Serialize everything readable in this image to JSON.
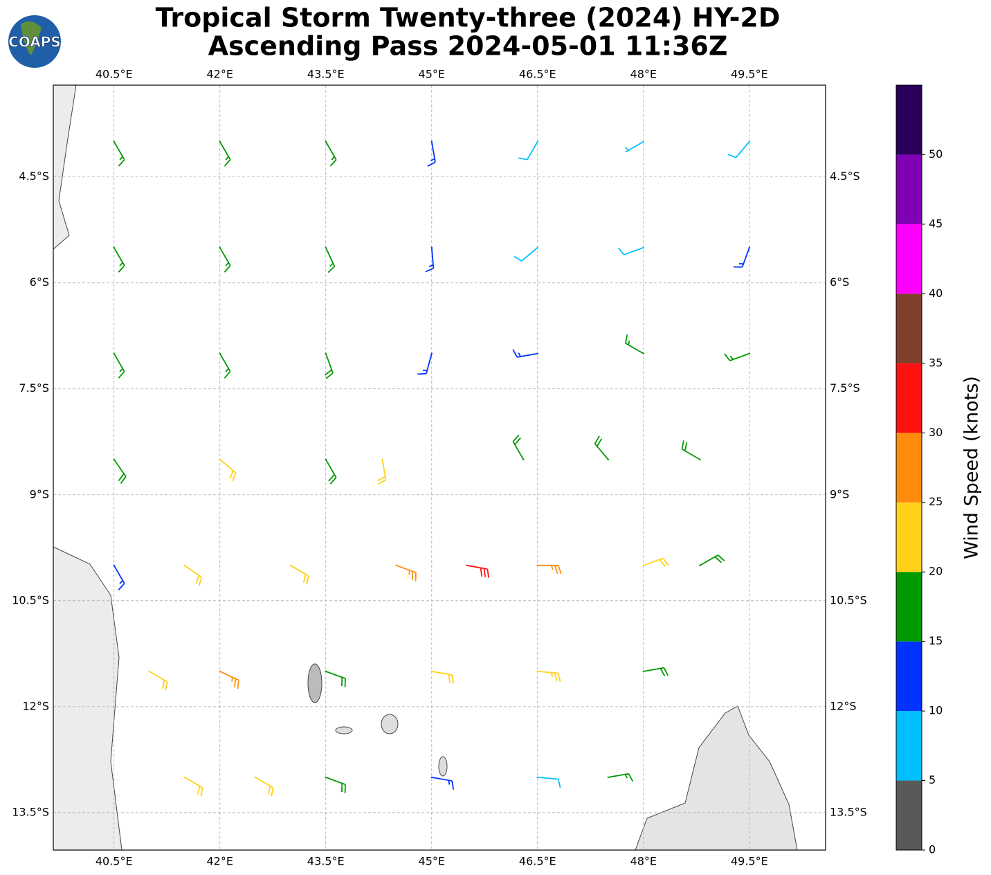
{
  "logo": "COAPS",
  "chart_data": {
    "type": "barbs",
    "title": "Tropical Storm Twenty-three (2024) HY-2D",
    "subtitle": "Ascending Pass 2024-05-01 11:36Z",
    "xlim": [
      39.64,
      50.58
    ],
    "ylim": [
      -14.03,
      -3.2
    ],
    "xticks": [
      {
        "value": 40.5,
        "label": "40.5°E"
      },
      {
        "value": 42,
        "label": "42°E"
      },
      {
        "value": 43.5,
        "label": "43.5°E"
      },
      {
        "value": 45,
        "label": "45°E"
      },
      {
        "value": 46.5,
        "label": "46.5°E"
      },
      {
        "value": 48,
        "label": "48°E"
      },
      {
        "value": 49.5,
        "label": "49.5°E"
      }
    ],
    "yticks": [
      {
        "value": -4.5,
        "label": "4.5°S"
      },
      {
        "value": -6,
        "label": "6°S"
      },
      {
        "value": -7.5,
        "label": "7.5°S"
      },
      {
        "value": -9,
        "label": "9°S"
      },
      {
        "value": -10.5,
        "label": "10.5°S"
      },
      {
        "value": -12,
        "label": "12°S"
      },
      {
        "value": -13.5,
        "label": "13.5°S"
      }
    ],
    "grid": true,
    "barbs": {
      "lon": [
        40.5,
        42,
        43.5,
        45,
        46.5,
        48,
        49.5,
        40.5,
        42,
        43.5,
        45,
        46.5,
        48,
        49.5,
        40.5,
        42,
        43.5,
        45,
        46.5,
        48,
        49.5,
        40.5,
        42,
        43.5,
        44.3,
        46.3,
        47.5,
        48.8,
        40.5,
        41.5,
        43,
        44.5,
        45.5,
        46.5,
        48,
        48.8,
        41,
        42,
        43.5,
        45,
        46.5,
        48,
        41.5,
        42.5,
        43.5,
        45,
        46.5,
        47.5
      ],
      "lat": [
        -4,
        -4,
        -4,
        -4,
        -4,
        -4,
        -4,
        -5.5,
        -5.5,
        -5.5,
        -5.5,
        -5.5,
        -5.5,
        -5.5,
        -7,
        -7,
        -7,
        -7,
        -7,
        -7,
        -7,
        -8.5,
        -8.5,
        -8.5,
        -8.5,
        -8.5,
        -8.5,
        -8.5,
        -10,
        -10,
        -10,
        -10,
        -10,
        -10,
        -10,
        -10,
        -11.5,
        -11.5,
        -11.5,
        -11.5,
        -11.5,
        -11.5,
        -13,
        -13,
        -13,
        -13,
        -13,
        -13
      ],
      "speed": [
        17,
        17,
        17,
        13,
        8,
        7,
        8,
        17,
        17,
        17,
        13,
        8,
        9,
        14,
        17,
        17,
        18,
        13,
        13,
        17,
        17,
        18,
        22,
        18,
        22,
        18,
        18,
        18,
        13,
        22,
        22,
        27,
        32,
        27,
        22,
        18,
        22,
        27,
        18,
        22,
        23,
        18,
        22,
        22,
        18,
        13,
        8,
        16
      ],
      "direction": [
        150,
        150,
        150,
        170,
        210,
        240,
        220,
        150,
        150,
        155,
        175,
        230,
        250,
        200,
        150,
        150,
        160,
        195,
        260,
        300,
        250,
        145,
        130,
        150,
        170,
        330,
        320,
        300,
        150,
        125,
        120,
        110,
        100,
        90,
        70,
        60,
        120,
        115,
        110,
        100,
        95,
        80,
        120,
        120,
        110,
        100,
        95,
        80
      ]
    },
    "colorbar": {
      "label": "Wind Speed (knots)",
      "bounds": [
        0,
        5,
        10,
        15,
        20,
        25,
        30,
        35,
        40,
        45,
        50,
        55
      ],
      "colors": [
        "#595959",
        "#00bfff",
        "#0033ff",
        "#009900",
        "#ffd11a",
        "#ff8c0d",
        "#ff1111",
        "#803f2a",
        "#ff00ff",
        "#8000b3",
        "#2b005c"
      ],
      "ticks": [
        0,
        5,
        10,
        15,
        20,
        25,
        30,
        35,
        40,
        45,
        50
      ]
    }
  }
}
